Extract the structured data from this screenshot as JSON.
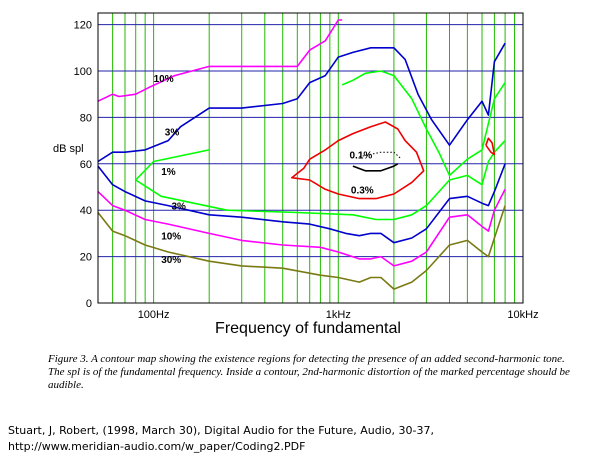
{
  "chart_data": {
    "type": "line",
    "xlabel": "Frequency of fundamental",
    "ylabel": "dB spl",
    "x_scale": "log",
    "xlim": [
      50,
      10000
    ],
    "ylim": [
      0,
      125
    ],
    "x_ticks": [
      {
        "value": 100,
        "label": "100Hz"
      },
      {
        "value": 1000,
        "label": "1kHz"
      },
      {
        "value": 10000,
        "label": "10kHz"
      }
    ],
    "y_ticks": [
      0,
      20,
      40,
      60,
      80,
      100,
      120
    ],
    "grid": true,
    "grid_color": "#22bb00",
    "y_grid_color": "#2222aa",
    "series": [
      {
        "label": "",
        "color": "#ff00ff",
        "points": [
          [
            50,
            87
          ],
          [
            60,
            90
          ],
          [
            65,
            89
          ],
          [
            80,
            90
          ],
          [
            95,
            93
          ],
          [
            130,
            98
          ],
          [
            200,
            102
          ],
          [
            600,
            102
          ],
          [
            700,
            109
          ],
          [
            850,
            113
          ],
          [
            1000,
            122
          ],
          [
            1050,
            122
          ]
        ]
      },
      {
        "label": "10%",
        "color": "#0000cc",
        "points": [
          [
            50,
            61
          ],
          [
            60,
            65
          ],
          [
            70,
            65
          ],
          [
            90,
            66
          ],
          [
            120,
            70
          ],
          [
            140,
            76
          ],
          [
            200,
            84
          ],
          [
            300,
            84
          ],
          [
            500,
            86
          ],
          [
            600,
            88
          ],
          [
            700,
            95
          ],
          [
            850,
            98
          ],
          [
            1000,
            106
          ],
          [
            1200,
            108
          ],
          [
            1500,
            110
          ],
          [
            2000,
            110
          ],
          [
            2300,
            105
          ],
          [
            2700,
            90
          ],
          [
            3200,
            79
          ],
          [
            4000,
            68
          ],
          [
            5000,
            79
          ],
          [
            6000,
            87
          ],
          [
            6500,
            81
          ],
          [
            7000,
            104
          ],
          [
            8000,
            112
          ]
        ]
      },
      {
        "label": "3%",
        "color": "#00ff00",
        "points": [
          [
            1050,
            94
          ],
          [
            1200,
            96
          ],
          [
            1400,
            99
          ],
          [
            1700,
            100
          ],
          [
            2000,
            98
          ],
          [
            2500,
            88
          ],
          [
            3000,
            75
          ],
          [
            3500,
            65
          ],
          [
            4000,
            55
          ],
          [
            5000,
            62
          ],
          [
            6000,
            66
          ],
          [
            7000,
            88
          ],
          [
            8000,
            95
          ]
        ]
      },
      {
        "label": "1%",
        "color": "#00ff00",
        "points": [
          [
            200,
            66
          ],
          [
            100,
            61
          ],
          [
            80,
            53
          ],
          [
            110,
            46
          ],
          [
            250,
            40
          ],
          [
            600,
            39
          ],
          [
            1200,
            38
          ],
          [
            1600,
            36
          ],
          [
            2000,
            36
          ],
          [
            2500,
            38
          ],
          [
            3000,
            42
          ],
          [
            4000,
            53
          ],
          [
            5000,
            55
          ],
          [
            6000,
            51
          ],
          [
            6500,
            61
          ],
          [
            7000,
            65
          ],
          [
            8000,
            70
          ]
        ]
      },
      {
        "label": "3%",
        "color": "#0000cc",
        "points": [
          [
            50,
            59
          ],
          [
            60,
            51
          ],
          [
            70,
            48
          ],
          [
            90,
            44
          ],
          [
            120,
            42
          ],
          [
            200,
            38
          ],
          [
            300,
            37
          ],
          [
            500,
            35
          ],
          [
            700,
            34
          ],
          [
            900,
            32
          ],
          [
            1100,
            30
          ],
          [
            1300,
            29
          ],
          [
            1500,
            30
          ],
          [
            1700,
            30
          ],
          [
            2000,
            26
          ],
          [
            2500,
            28
          ],
          [
            3000,
            32
          ],
          [
            4000,
            45
          ],
          [
            5000,
            46
          ],
          [
            6000,
            43
          ],
          [
            6500,
            42
          ],
          [
            7000,
            48
          ],
          [
            8000,
            60
          ]
        ]
      },
      {
        "label": "10%",
        "color": "#ff00ff",
        "points": [
          [
            50,
            48
          ],
          [
            60,
            42
          ],
          [
            70,
            40
          ],
          [
            90,
            36
          ],
          [
            120,
            34
          ],
          [
            200,
            30
          ],
          [
            300,
            27
          ],
          [
            500,
            25
          ],
          [
            800,
            24
          ],
          [
            1000,
            22
          ],
          [
            1300,
            19
          ],
          [
            1500,
            19
          ],
          [
            1700,
            20
          ],
          [
            2000,
            16
          ],
          [
            2500,
            18
          ],
          [
            3000,
            22
          ],
          [
            4000,
            37
          ],
          [
            5000,
            38
          ],
          [
            6000,
            33
          ],
          [
            6500,
            31
          ],
          [
            7000,
            40
          ],
          [
            8000,
            49
          ]
        ]
      },
      {
        "label": "30%",
        "color": "#7a7a14",
        "points": [
          [
            50,
            39
          ],
          [
            60,
            31
          ],
          [
            70,
            29
          ],
          [
            90,
            25
          ],
          [
            120,
            22
          ],
          [
            200,
            18
          ],
          [
            300,
            16
          ],
          [
            500,
            15
          ],
          [
            800,
            12
          ],
          [
            1000,
            11
          ],
          [
            1300,
            9
          ],
          [
            1500,
            11
          ],
          [
            1700,
            11
          ],
          [
            2000,
            6
          ],
          [
            2500,
            9
          ],
          [
            3000,
            14
          ],
          [
            4000,
            25
          ],
          [
            5000,
            27
          ],
          [
            6000,
            22
          ],
          [
            6500,
            20
          ],
          [
            7000,
            28
          ],
          [
            8000,
            42
          ]
        ]
      },
      {
        "label": "0.3%",
        "color": "#ee0000",
        "points": [
          [
            700,
            62
          ],
          [
            650,
            58
          ],
          [
            560,
            54
          ],
          [
            700,
            53
          ],
          [
            850,
            49
          ],
          [
            1000,
            47
          ],
          [
            1300,
            45
          ],
          [
            1600,
            45
          ],
          [
            2000,
            47
          ],
          [
            2500,
            52
          ],
          [
            2900,
            57
          ],
          [
            2650,
            65
          ],
          [
            2300,
            70
          ],
          [
            2100,
            75
          ],
          [
            1800,
            78
          ],
          [
            1500,
            76
          ],
          [
            1200,
            73
          ],
          [
            1000,
            70
          ],
          [
            850,
            66
          ],
          [
            700,
            62
          ]
        ]
      },
      {
        "label": "0.1%",
        "color": "#000000",
        "points": [
          [
            1200,
            59
          ],
          [
            1400,
            57
          ],
          [
            1700,
            57
          ],
          [
            2000,
            59
          ],
          [
            2100,
            60
          ]
        ]
      },
      {
        "label": "",
        "color": "#ee0000",
        "points": [
          [
            6300,
            68
          ],
          [
            6700,
            65
          ],
          [
            7000,
            64
          ],
          [
            6800,
            69
          ],
          [
            6500,
            71
          ],
          [
            6300,
            68
          ]
        ]
      }
    ],
    "dotted_series": {
      "label": "",
      "color": "#000000",
      "points": [
        [
          1300,
          63
        ],
        [
          1700,
          65
        ],
        [
          2000,
          65
        ],
        [
          2200,
          62
        ]
      ]
    },
    "contour_labels": [
      {
        "text": "10%",
        "x": 100,
        "y": 97
      },
      {
        "text": "3%",
        "x": 115,
        "y": 74
      },
      {
        "text": "1%",
        "x": 110,
        "y": 57
      },
      {
        "text": "3%",
        "x": 125,
        "y": 42
      },
      {
        "text": "10%",
        "x": 110,
        "y": 29
      },
      {
        "text": "30%",
        "x": 110,
        "y": 19
      },
      {
        "text": "0.1%",
        "x": 1150,
        "y": 64
      },
      {
        "text": "0.3%",
        "x": 1170,
        "y": 49
      }
    ]
  },
  "caption": "Figure 3. A contour map showing the existence regions for detecting the presence of an added second-harmonic tone. The spl is of the fundamental frequency. Inside a contour, 2nd-harmonic distortion of the marked percentage should be audible.",
  "citation": {
    "line1": "Stuart, J, Robert, (1998, March 30), Digital Audio for the Future, Audio, 30-37,",
    "line2": "http://www.meridian-audio.com/w_paper/Coding2.PDF"
  }
}
